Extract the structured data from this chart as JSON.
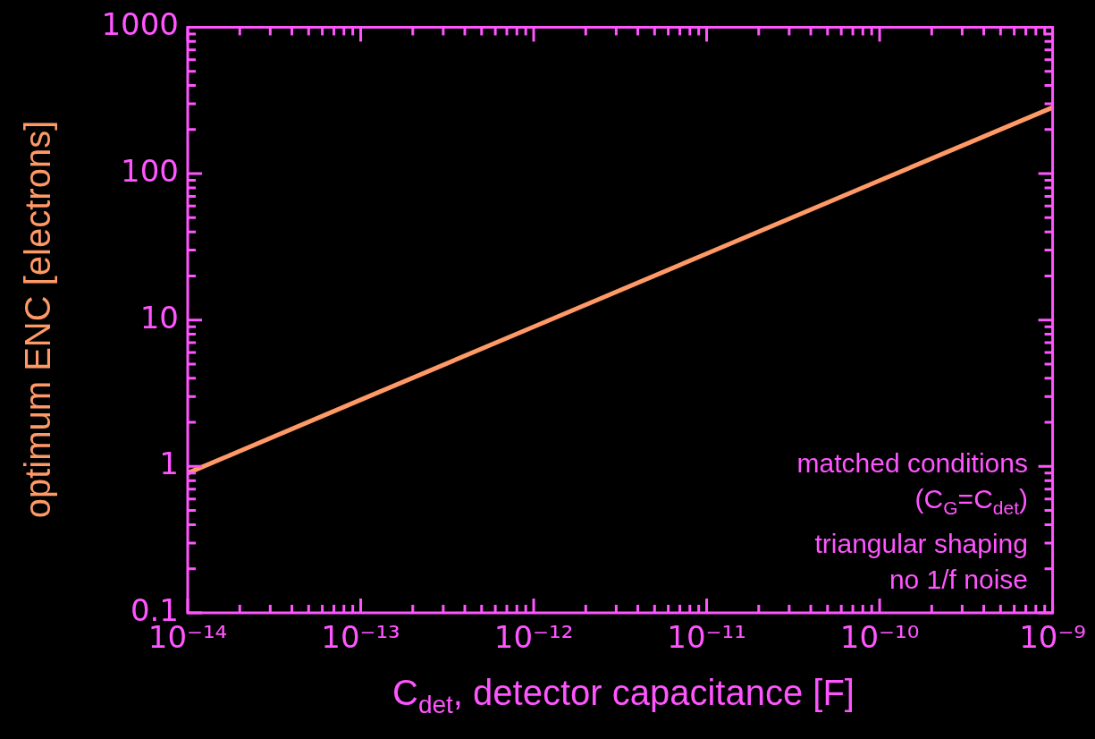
{
  "chart_data": {
    "type": "line",
    "xlabel": "C$_{det}$, detector capacitance [F]",
    "ylabel": "optimum ENC [electrons]",
    "log": "xy",
    "grid": false,
    "x": [
      1e-14,
      1e-13,
      1e-12,
      1e-11,
      1e-10,
      1e-09
    ],
    "series": [
      {
        "color": "#ff9966",
        "values": [
          0.9,
          2.85,
          9.0,
          28.4,
          89.7,
          283
        ]
      }
    ],
    "xlim": [
      1e-14,
      1e-09
    ],
    "ylim": [
      0.1,
      1000
    ],
    "xticks": [
      {
        "value": 1e-14,
        "label": "10⁻¹⁴"
      },
      {
        "value": 2e-14,
        "label": null
      },
      {
        "value": 3e-14,
        "label": null
      },
      {
        "value": 4e-14,
        "label": null
      },
      {
        "value": 5e-14,
        "label": null
      },
      {
        "value": 6e-14,
        "label": null
      },
      {
        "value": 7e-14,
        "label": null
      },
      {
        "value": 8e-14,
        "label": null
      },
      {
        "value": 9e-14,
        "label": null
      },
      {
        "value": 1e-13,
        "label": "10⁻¹³"
      },
      {
        "value": 2e-13,
        "label": null
      },
      {
        "value": 3e-13,
        "label": null
      },
      {
        "value": 4e-13,
        "label": null
      },
      {
        "value": 5e-13,
        "label": null
      },
      {
        "value": 6e-13,
        "label": null
      },
      {
        "value": 7e-13,
        "label": null
      },
      {
        "value": 8e-13,
        "label": null
      },
      {
        "value": 9e-13,
        "label": null
      },
      {
        "value": 1e-12,
        "label": "10⁻¹²"
      },
      {
        "value": 2e-12,
        "label": null
      },
      {
        "value": 3e-12,
        "label": null
      },
      {
        "value": 4e-12,
        "label": null
      },
      {
        "value": 5e-12,
        "label": null
      },
      {
        "value": 6e-12,
        "label": null
      },
      {
        "value": 7e-12,
        "label": null
      },
      {
        "value": 8e-12,
        "label": null
      },
      {
        "value": 9e-12,
        "label": null
      },
      {
        "value": 1e-11,
        "label": "10⁻¹¹"
      },
      {
        "value": 2e-11,
        "label": null
      },
      {
        "value": 3e-11,
        "label": null
      },
      {
        "value": 4e-11,
        "label": null
      },
      {
        "value": 5e-11,
        "label": null
      },
      {
        "value": 6e-11,
        "label": null
      },
      {
        "value": 7e-11,
        "label": null
      },
      {
        "value": 8e-11,
        "label": null
      },
      {
        "value": 9e-11,
        "label": null
      },
      {
        "value": 1e-10,
        "label": "10⁻¹⁰"
      },
      {
        "value": 2e-10,
        "label": null
      },
      {
        "value": 3e-10,
        "label": null
      },
      {
        "value": 4e-10,
        "label": null
      },
      {
        "value": 5e-10,
        "label": null
      },
      {
        "value": 6e-10,
        "label": null
      },
      {
        "value": 7e-10,
        "label": null
      },
      {
        "value": 8e-10,
        "label": null
      },
      {
        "value": 9e-10,
        "label": null
      },
      {
        "value": 1e-09,
        "label": "10⁻⁹"
      }
    ],
    "yticks": [
      0.1,
      {
        "value": 0.2,
        "label": null
      },
      {
        "value": 0.3,
        "label": null
      },
      {
        "value": 0.4,
        "label": null
      },
      {
        "value": 0.5,
        "label": null
      },
      {
        "value": 0.6,
        "label": null
      },
      {
        "value": 0.7,
        "label": null
      },
      {
        "value": 0.8,
        "label": null
      },
      {
        "value": 0.9,
        "label": null
      },
      1,
      {
        "value": 2,
        "label": null
      },
      {
        "value": 3,
        "label": null
      },
      {
        "value": 4,
        "label": null
      },
      {
        "value": 5,
        "label": null
      },
      {
        "value": 6,
        "label": null
      },
      {
        "value": 7,
        "label": null
      },
      {
        "value": 8,
        "label": null
      },
      {
        "value": 9,
        "label": null
      },
      10,
      {
        "value": 20,
        "label": null
      },
      {
        "value": 30,
        "label": null
      },
      {
        "value": 40,
        "label": null
      },
      {
        "value": 50,
        "label": null
      },
      {
        "value": 60,
        "label": null
      },
      {
        "value": 70,
        "label": null
      },
      {
        "value": 80,
        "label": null
      },
      {
        "value": 90,
        "label": null
      },
      100,
      {
        "value": 200,
        "label": null
      },
      {
        "value": 300,
        "label": null
      },
      {
        "value": 400,
        "label": null
      },
      {
        "value": 500,
        "label": null
      },
      {
        "value": 600,
        "label": null
      },
      {
        "value": 700,
        "label": null
      },
      {
        "value": 800,
        "label": null
      },
      {
        "value": 900,
        "label": null
      },
      1000
    ],
    "annotations": [
      "matched conditions",
      "(C$_{G}$=C$_{det}$)",
      "triangular shaping",
      "no 1/f noise"
    ]
  }
}
